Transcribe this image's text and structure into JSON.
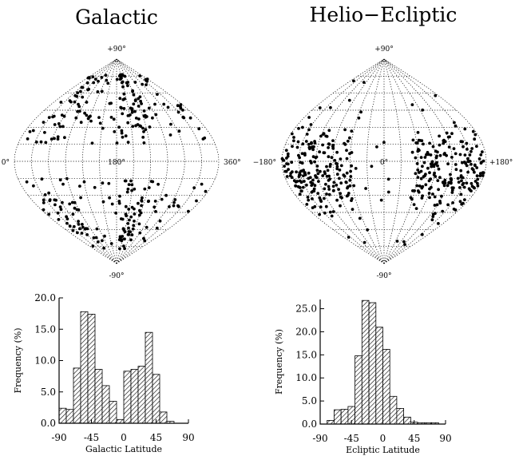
{
  "chart_data": [
    {
      "type": "scatter",
      "panel": "galactic-map",
      "title": "Galactic",
      "labels": {
        "top": "+90°",
        "bottom": "-90°",
        "left": "0°",
        "center": "180°",
        "right": "360°"
      },
      "point_color": "#000000"
    },
    {
      "type": "scatter",
      "panel": "ecliptic-map",
      "title": "Helio−Ecliptic",
      "labels": {
        "top": "+90°",
        "bottom": "-90°",
        "left": "−180°",
        "center": "0°",
        "right": "+180°"
      },
      "point_color": "#000000"
    },
    {
      "type": "bar",
      "panel": "galactic-histogram",
      "xlabel": "Galactic Latitude",
      "ylabel": "Frequency (%)",
      "xlim": [
        -90,
        90
      ],
      "ylim": [
        0,
        20
      ],
      "xticks": [
        "-90",
        "-45",
        "0",
        "45",
        "90"
      ],
      "yticks": [
        "0.0",
        "5.0",
        "10.0",
        "15.0",
        "20.0"
      ],
      "bin_edges": [
        -90,
        -80,
        -70,
        -60,
        -50,
        -40,
        -30,
        -20,
        -10,
        0,
        10,
        20,
        30,
        40,
        50,
        60,
        70,
        80
      ],
      "values": [
        2.4,
        2.2,
        8.8,
        17.8,
        17.4,
        8.6,
        6.0,
        3.5,
        0.6,
        8.3,
        8.6,
        9.1,
        14.5,
        7.8,
        1.8,
        0.3,
        0.0
      ]
    },
    {
      "type": "bar",
      "panel": "ecliptic-histogram",
      "xlabel": "Ecliptic Latitude",
      "ylabel": "Frequency (%)",
      "xlim": [
        -90,
        90
      ],
      "ylim": [
        0,
        27
      ],
      "xticks": [
        "-90",
        "-45",
        "0",
        "45",
        "90"
      ],
      "yticks": [
        "0.0",
        "5.0",
        "10.0",
        "15.0",
        "20.0",
        "25.0"
      ],
      "bin_edges": [
        -90,
        -80,
        -70,
        -60,
        -50,
        -40,
        -30,
        -20,
        -10,
        0,
        10,
        20,
        30,
        40,
        50,
        60,
        70,
        80
      ],
      "values": [
        0,
        0.8,
        3.1,
        3.2,
        3.8,
        14.8,
        26.8,
        26.3,
        21.0,
        16.2,
        6.0,
        3.4,
        1.5,
        0.4,
        0.3,
        0.3,
        0.3
      ]
    }
  ]
}
